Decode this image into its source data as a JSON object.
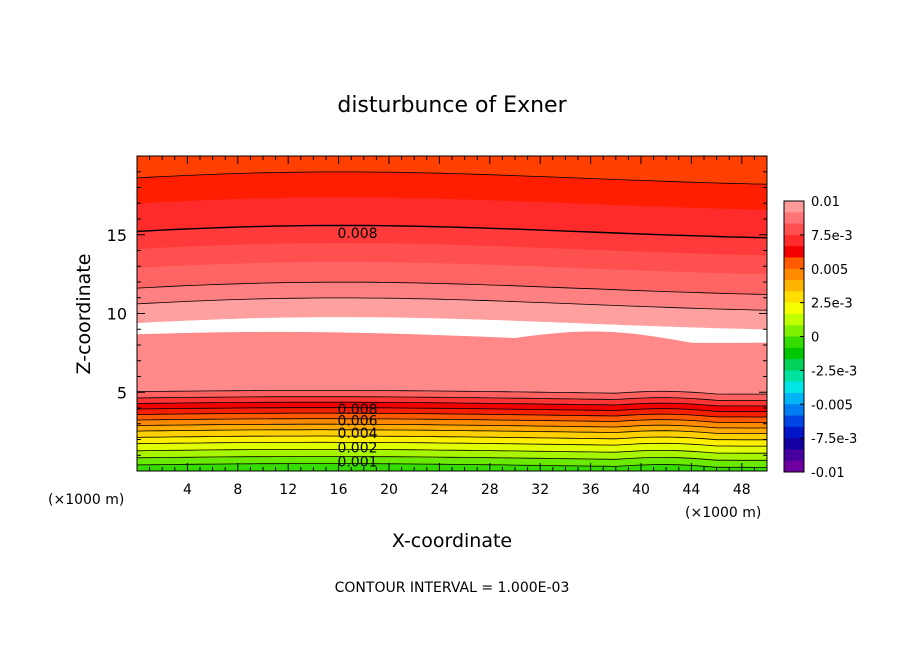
{
  "chart_data": {
    "type": "contour",
    "title": "disturbunce of Exner",
    "xlabel": "X-coordinate",
    "ylabel": "Z-coordinate",
    "x_unit_left": "(×1000 m)",
    "x_unit_right": "(×1000 m)",
    "xlim": [
      0,
      50
    ],
    "ylim": [
      0,
      20
    ],
    "x_ticks": [
      4,
      8,
      12,
      16,
      20,
      24,
      28,
      32,
      36,
      40,
      44,
      48
    ],
    "y_ticks": [
      5,
      10,
      15
    ],
    "footer": "CONTOUR INTERVAL = 1.000E-03",
    "colorbar": {
      "labels": [
        "0.01",
        "7.5e-3",
        "0.005",
        "2.5e-3",
        "0",
        "-2.5e-3",
        "-0.005",
        "-7.5e-3",
        "-0.01"
      ],
      "range": [
        -0.01,
        0.01
      ]
    },
    "contour_labels": [
      {
        "text": "0.008",
        "x": 17.5,
        "z": 15.1
      },
      {
        "text": "0.008",
        "x": 17.5,
        "z": 3.95
      },
      {
        "text": "0.006",
        "x": 17.5,
        "z": 3.2
      },
      {
        "text": "0.004",
        "x": 17.5,
        "z": 2.4
      },
      {
        "text": "0.002",
        "x": 17.5,
        "z": 1.5
      },
      {
        "text": "0.001",
        "x": 17.5,
        "z": 0.6
      }
    ],
    "contour_interval": 0.001
  }
}
